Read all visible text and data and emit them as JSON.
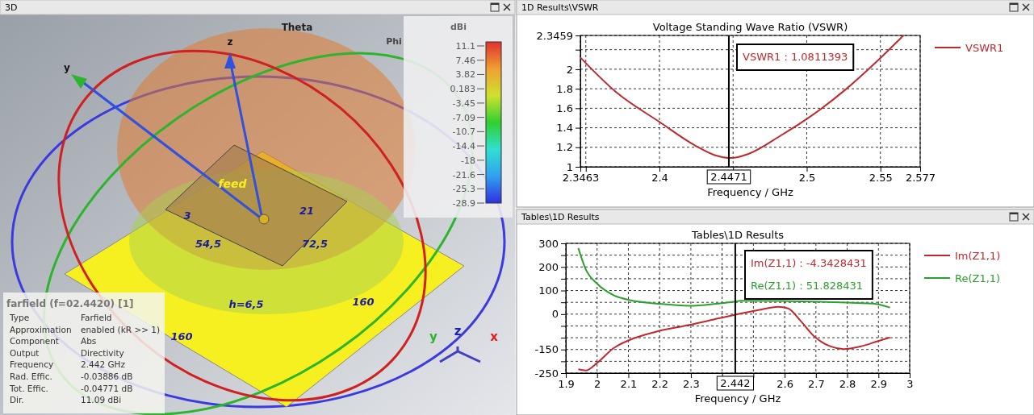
{
  "chart_data": [
    {
      "type": "other",
      "title": "farfield (f=02.4420) [1]",
      "clabel": "dBi",
      "annotations": [
        "3D",
        "Theta",
        "Phi",
        "z",
        "y",
        "feed",
        "3",
        "21",
        "54,5",
        "72,5",
        "h=6,5",
        "160",
        "160",
        "y",
        "z",
        "x",
        "Type",
        "Farfield",
        "Approximation",
        "enabled (kR >> 1)",
        "Component",
        "Abs",
        "Output",
        "Directivity",
        "Frequency",
        "2.442 GHz",
        "Rad. Effic.",
        "-0.03886 dB",
        "Tot. Effic.",
        "-0.04771 dB",
        "Dir.",
        "11.09 dBi",
        "11.1",
        "7.46",
        "3.82",
        "0.183",
        "-3.45",
        "-7.09",
        "-10.7",
        "-14.4",
        "-18",
        "-21.6",
        "-25.3",
        "-28.9"
      ]
    },
    {
      "type": "line",
      "title": "Voltage Standing Wave Ratio (VSWR)",
      "xlabel": "Frequency / GHz",
      "annotations": [
        "1D Results\\VSWR",
        "VSWR1 : 1.0811393"
      ],
      "x": [
        2.3463,
        2.3702,
        2.4,
        2.424,
        2.4374,
        2.4487,
        2.46,
        2.4823,
        2.5,
        2.527,
        2.549,
        2.5657
      ],
      "series": [
        {
          "name": "VSWR1",
          "color": "#c0282d",
          "values": [
            2.12,
            1.77,
            1.46,
            1.22,
            1.12,
            1.09,
            1.13,
            1.32,
            1.49,
            1.8,
            2.1,
            2.3459
          ]
        }
      ],
      "xlim": [
        2.3463,
        2.577
      ],
      "xticks": [
        2.3463,
        {
          "value": 2.35,
          "label": null
        },
        2.4,
        {
          "value": 2.45,
          "label": null
        },
        2.5,
        2.55,
        2.577
      ],
      "ylim": [
        1,
        2.3459
      ],
      "yticks": [
        1,
        1.2,
        1.4,
        1.6,
        1.8,
        2,
        {
          "value": 2.2,
          "label": null
        },
        2.3459
      ],
      "ref_lines": [
        {
          "axis": "x",
          "value": 2.4471,
          "label": "2.4471",
          "color": "#000000"
        }
      ],
      "grid": true,
      "legend": "right"
    },
    {
      "type": "line",
      "title": "Tables\\1D Results",
      "xlabel": "Frequency / GHz",
      "annotations": [
        "Tables\\1D Results",
        "Im(Z1,1) : -4.3428431",
        "Re(Z1,1) : 51.828431"
      ],
      "series": [
        {
          "name": "Im(Z1,1)",
          "color": "#c0282d",
          "x": [
            1.94,
            1.963,
            2.0,
            2.053,
            2.105,
            2.19,
            2.295,
            2.389,
            2.437,
            2.516,
            2.579,
            2.611,
            2.653,
            2.695,
            2.747,
            2.789,
            2.842,
            2.895,
            2.937
          ],
          "values": [
            -234,
            -239,
            -207,
            -144,
            -109,
            -74,
            -46,
            -18,
            -4,
            17,
            31,
            24,
            -32,
            -95,
            -137,
            -148,
            -137,
            -116,
            -99
          ]
        },
        {
          "name": "Re(Z1,1)",
          "color": "#2ca02c",
          "x": [
            1.94,
            1.963,
            2.0,
            2.053,
            2.105,
            2.19,
            2.295,
            2.389,
            2.437,
            2.46,
            2.883,
            2.937
          ],
          "values": [
            280,
            192,
            129,
            80,
            59,
            45,
            35,
            45,
            52,
            57,
            45,
            28
          ]
        }
      ],
      "xlim": [
        1.9,
        3
      ],
      "xticks": [
        1.9,
        2,
        2.1,
        2.2,
        2.3,
        {
          "value": 2.4,
          "label": null
        },
        {
          "value": 2.5,
          "label": null
        },
        2.6,
        2.7,
        2.8,
        2.9,
        3
      ],
      "ylim": [
        -250,
        300
      ],
      "yticks": [
        -250,
        {
          "value": -200,
          "label": null
        },
        -150,
        {
          "value": -100,
          "label": null
        },
        {
          "value": -50,
          "label": null
        },
        0,
        {
          "value": 50,
          "label": null
        },
        100,
        {
          "value": 150,
          "label": null
        },
        200,
        {
          "value": 250,
          "label": null
        },
        300
      ],
      "ref_lines": [
        {
          "axis": "x",
          "value": 2.442,
          "label": "2.442",
          "color": "#000000"
        }
      ],
      "grid": true,
      "legend": "right"
    }
  ]
}
